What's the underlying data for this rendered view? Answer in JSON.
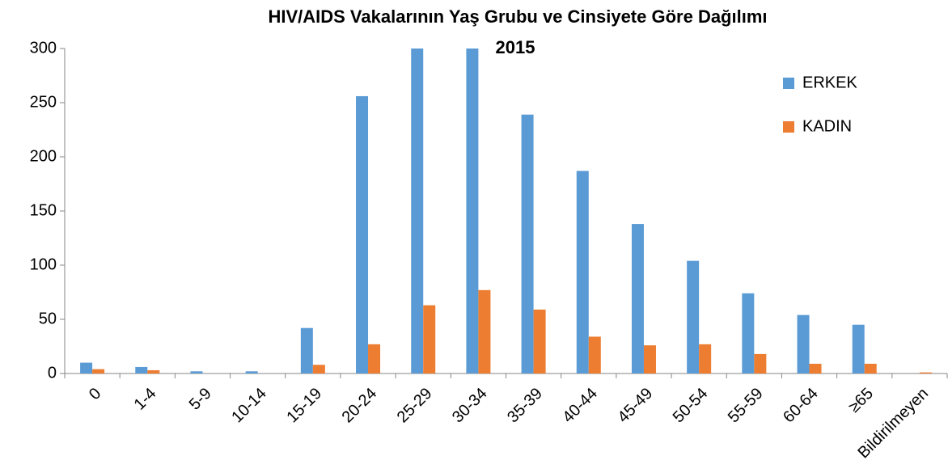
{
  "chart_data": {
    "type": "bar",
    "title": "HIV/AIDS Vakalarının Yaş Grubu ve Cinsiyete Göre Dağılımı",
    "subtitle": "2015",
    "categories": [
      "0",
      "1-4",
      "5-9",
      "10-14",
      "15-19",
      "20-24",
      "25-29",
      "30-34",
      "35-39",
      "40-44",
      "45-49",
      "50-54",
      "55-59",
      "60-64",
      "≥65",
      "Bildirilmeyen"
    ],
    "series": [
      {
        "name": "ERKEK",
        "color": "#5b9bd5",
        "values": [
          10,
          6,
          2,
          2,
          42,
          256,
          300,
          300,
          239,
          187,
          138,
          104,
          74,
          54,
          45,
          0
        ]
      },
      {
        "name": "KADIN",
        "color": "#ed7d31",
        "values": [
          4,
          3,
          0,
          0,
          8,
          27,
          63,
          77,
          59,
          34,
          26,
          27,
          18,
          9,
          9,
          1
        ]
      }
    ],
    "ylim": [
      0,
      300
    ],
    "yticks": [
      0,
      50,
      100,
      150,
      200,
      250,
      300
    ],
    "grid": false,
    "legend": "top-right"
  }
}
